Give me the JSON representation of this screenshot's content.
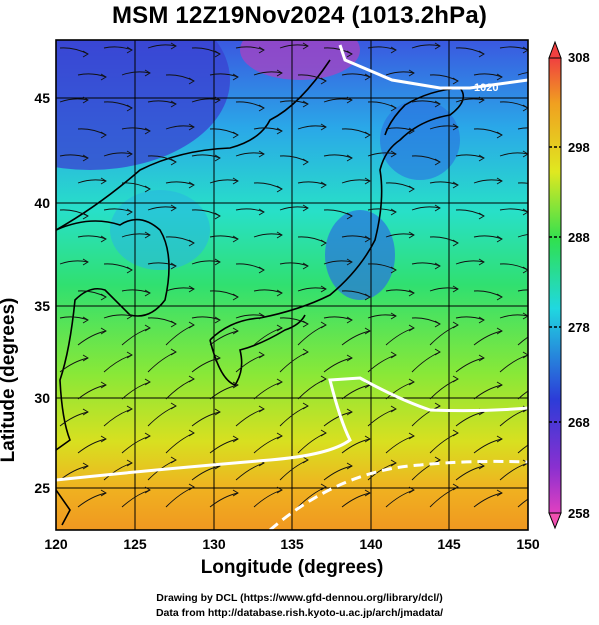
{
  "title": "MSM 12Z19Nov2024 (1013.2hPa)",
  "x_axis": {
    "label": "Longitude (degrees)",
    "ticks": [
      "120",
      "125",
      "130",
      "135",
      "140",
      "145",
      "150"
    ]
  },
  "y_axis": {
    "label": "Latitude  (degrees)",
    "ticks": [
      "25",
      "30",
      "35",
      "40",
      "45"
    ]
  },
  "colorbar": {
    "ticks": [
      "258",
      "268",
      "278",
      "288",
      "298",
      "308"
    ]
  },
  "contour_labels": [
    "1020",
    "1020"
  ],
  "credits": {
    "line1": "Drawing by DCL (https://www.gfd-dennou.org/library/dcl/)",
    "line2": "Data from http://database.rish.kyoto-u.ac.jp/arch/jmadata/"
  },
  "colors": {
    "cold_violet": "#b040c8",
    "cold_blue": "#3a4fd8",
    "cyan": "#20d8e0",
    "green": "#38e050",
    "yellow": "#e8e820",
    "orange": "#f0a020",
    "red": "#f04040",
    "pink": "#f050b0"
  }
}
